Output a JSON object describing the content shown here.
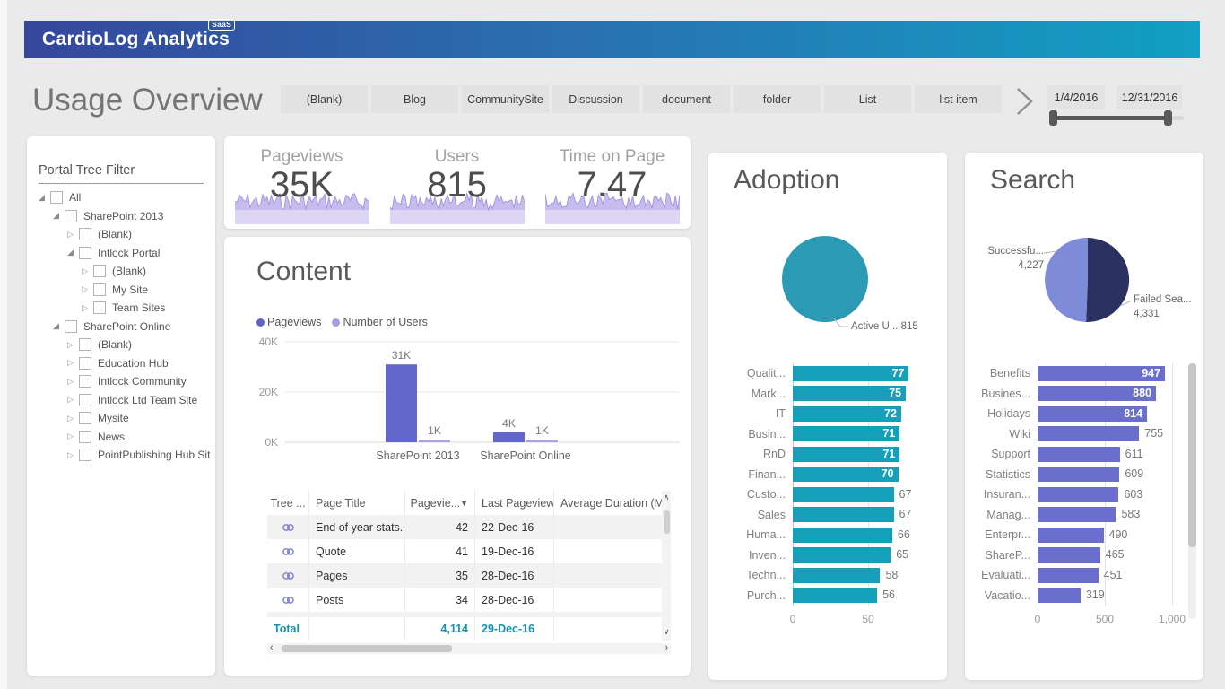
{
  "app": {
    "logo_text": "CardioLog Analytics",
    "logo_badge": "SaaS"
  },
  "page": {
    "title": "Usage Overview"
  },
  "toolbar": {
    "content_type_buttons": [
      "(Blank)",
      "Blog",
      "CommunitySite",
      "Discussion",
      "document",
      "folder",
      "List",
      "list item"
    ],
    "date_start": "1/4/2016",
    "date_end": "12/31/2016"
  },
  "portal_tree": {
    "title": "Portal Tree Filter",
    "items": [
      {
        "label": "All",
        "level": 0,
        "state": "expanded"
      },
      {
        "label": "SharePoint 2013",
        "level": 1,
        "state": "expanded"
      },
      {
        "label": "(Blank)",
        "level": 2,
        "state": "collapsed"
      },
      {
        "label": "Intlock Portal",
        "level": 2,
        "state": "expanded"
      },
      {
        "label": "(Blank)",
        "level": 3,
        "state": "collapsed"
      },
      {
        "label": "My Site",
        "level": 3,
        "state": "collapsed"
      },
      {
        "label": "Team Sites",
        "level": 3,
        "state": "collapsed"
      },
      {
        "label": "SharePoint Online",
        "level": 1,
        "state": "expanded"
      },
      {
        "label": "(Blank)",
        "level": 2,
        "state": "collapsed"
      },
      {
        "label": "Education Hub",
        "level": 2,
        "state": "collapsed"
      },
      {
        "label": "Intlock Community",
        "level": 2,
        "state": "collapsed"
      },
      {
        "label": "Intlock Ltd Team Site",
        "level": 2,
        "state": "collapsed"
      },
      {
        "label": "Mysite",
        "level": 2,
        "state": "collapsed"
      },
      {
        "label": "News",
        "level": 2,
        "state": "collapsed"
      },
      {
        "label": "PointPublishing Hub Sit",
        "level": 2,
        "state": "collapsed"
      }
    ]
  },
  "kpis": [
    {
      "title": "Pageviews",
      "value": "35K"
    },
    {
      "title": "Users",
      "value": "815"
    },
    {
      "title": "Time on Page",
      "value": "7.47"
    }
  ],
  "content": {
    "title": "Content",
    "chart_data": {
      "type": "bar",
      "categories": [
        "SharePoint 2013",
        "SharePoint Online"
      ],
      "series": [
        {
          "name": "Pageviews",
          "values": [
            31000,
            4000
          ],
          "labels": [
            "31K",
            "4K"
          ],
          "color": "#6467ca"
        },
        {
          "name": "Number of Users",
          "values": [
            1000,
            1000
          ],
          "labels": [
            "1K",
            "1K"
          ],
          "color": "#aba2e3"
        }
      ],
      "ylim": [
        0,
        40000
      ],
      "yticks": [
        "0K",
        "20K",
        "40K"
      ]
    },
    "table": {
      "columns": [
        "Tree ...",
        "Page Title",
        "Pagevie...",
        "Last Pageview",
        "Average Duration (M"
      ],
      "sort_column_index": 2,
      "rows": [
        {
          "title": "End of year stats...",
          "pageviews": "42",
          "last_pageview": "22-Dec-16",
          "duration": ""
        },
        {
          "title": "Quote",
          "pageviews": "41",
          "last_pageview": "19-Dec-16",
          "duration": ""
        },
        {
          "title": "Pages",
          "pageviews": "35",
          "last_pageview": "28-Dec-16",
          "duration": ""
        },
        {
          "title": "Posts",
          "pageviews": "34",
          "last_pageview": "28-Dec-16",
          "duration": ""
        }
      ],
      "total": {
        "label": "Total",
        "pageviews": "4,114",
        "last_pageview": "29-Dec-16"
      }
    }
  },
  "adoption": {
    "title": "Adoption",
    "pie": {
      "label": "Active U... 815",
      "value": 815,
      "color": "#2d9ab4"
    },
    "chart_data": {
      "type": "bar-horizontal",
      "categories": [
        "Qualit...",
        "Mark...",
        "IT",
        "Busin...",
        "RnD",
        "Finan...",
        "Custo...",
        "Sales",
        "Huma...",
        "Inven...",
        "Techn...",
        "Purch..."
      ],
      "values": [
        77,
        75,
        72,
        71,
        71,
        70,
        67,
        67,
        66,
        65,
        58,
        56
      ],
      "xticks": [
        {
          "v": 0,
          "label": "0"
        },
        {
          "v": 50,
          "label": "50"
        }
      ],
      "bar_color": "#169fb8"
    }
  },
  "search": {
    "title": "Search",
    "pie": {
      "type": "pie",
      "slices": [
        {
          "label": "Failed Sea...",
          "value_label": "4,331",
          "value": 4331,
          "color": "#2b3161"
        },
        {
          "label": "Successfu...",
          "value_label": "4,227",
          "value": 4227,
          "color": "#7e8bd8"
        }
      ]
    },
    "chart_data": {
      "type": "bar-horizontal",
      "categories": [
        "Benefits",
        "Busines...",
        "Holidays",
        "Wiki",
        "Support",
        "Statistics",
        "Insuran...",
        "Manag...",
        "Enterpr...",
        "ShareP...",
        "Evaluati...",
        "Vacatio..."
      ],
      "values": [
        947,
        880,
        814,
        755,
        611,
        609,
        603,
        583,
        490,
        465,
        451,
        319
      ],
      "xticks": [
        {
          "v": 0,
          "label": "0"
        },
        {
          "v": 500,
          "label": "500"
        },
        {
          "v": 1000,
          "label": "1,000"
        }
      ],
      "bar_color": "#6a6fce"
    }
  }
}
